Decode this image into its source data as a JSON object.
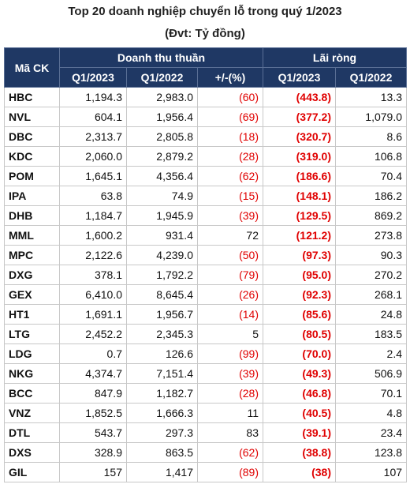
{
  "title": "Top 20 doanh nghiệp chuyển lỗ trong quý 1/2023",
  "subtitle": "(Đvt: Tỷ đồng)",
  "table": {
    "header": {
      "code": "Mã CK",
      "groups": [
        "Doanh thu thuần",
        "Lãi ròng"
      ],
      "columns": [
        "Q1/2023",
        "Q1/2022",
        "+/-(%)",
        "Q1/2023",
        "Q1/2022"
      ]
    },
    "rows": [
      [
        "HBC",
        "1,194.3",
        "2,983.0",
        "(60)",
        "(443.8)",
        "13.3"
      ],
      [
        "NVL",
        "604.1",
        "1,956.4",
        "(69)",
        "(377.2)",
        "1,079.0"
      ],
      [
        "DBC",
        "2,313.7",
        "2,805.8",
        "(18)",
        "(320.7)",
        "8.6"
      ],
      [
        "KDC",
        "2,060.0",
        "2,879.2",
        "(28)",
        "(319.0)",
        "106.8"
      ],
      [
        "POM",
        "1,645.1",
        "4,356.4",
        "(62)",
        "(186.6)",
        "70.4"
      ],
      [
        "IPA",
        "63.8",
        "74.9",
        "(15)",
        "(148.1)",
        "186.2"
      ],
      [
        "DHB",
        "1,184.7",
        "1,945.9",
        "(39)",
        "(129.5)",
        "869.2"
      ],
      [
        "MML",
        "1,600.2",
        "931.4",
        "72",
        "(121.2)",
        "273.8"
      ],
      [
        "MPC",
        "2,122.6",
        "4,239.0",
        "(50)",
        "(97.3)",
        "90.3"
      ],
      [
        "DXG",
        "378.1",
        "1,792.2",
        "(79)",
        "(95.0)",
        "270.2"
      ],
      [
        "GEX",
        "6,410.0",
        "8,645.4",
        "(26)",
        "(92.3)",
        "268.1"
      ],
      [
        "HT1",
        "1,691.1",
        "1,956.7",
        "(14)",
        "(85.6)",
        "24.8"
      ],
      [
        "LTG",
        "2,452.2",
        "2,345.3",
        "5",
        "(80.5)",
        "183.5"
      ],
      [
        "LDG",
        "0.7",
        "126.6",
        "(99)",
        "(70.0)",
        "2.4"
      ],
      [
        "NKG",
        "4,374.7",
        "7,151.4",
        "(39)",
        "(49.3)",
        "506.9"
      ],
      [
        "BCC",
        "847.9",
        "1,182.7",
        "(28)",
        "(46.8)",
        "70.1"
      ],
      [
        "VNZ",
        "1,852.5",
        "1,666.3",
        "11",
        "(40.5)",
        "4.8"
      ],
      [
        "DTL",
        "543.7",
        "297.3",
        "83",
        "(39.1)",
        "23.4"
      ],
      [
        "DXS",
        "328.9",
        "863.5",
        "(62)",
        "(38.8)",
        "123.8"
      ],
      [
        "GIL",
        "157",
        "1,417",
        "(89)",
        "(38)",
        "107"
      ]
    ]
  }
}
